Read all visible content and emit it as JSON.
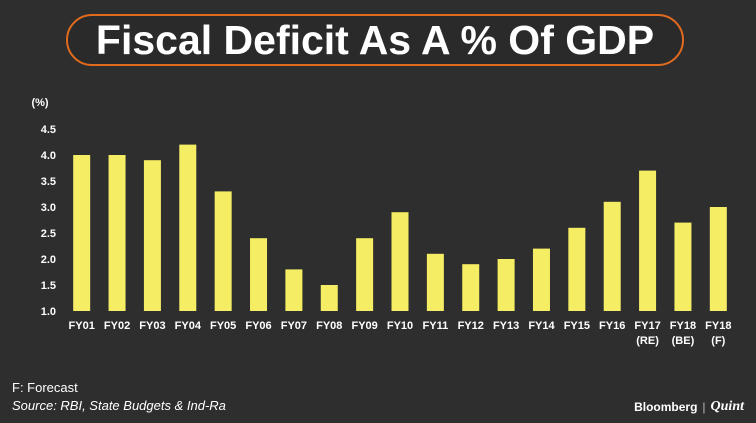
{
  "title": "Fiscal Deficit As A % Of GDP",
  "footnote": "F: Forecast",
  "source": "Source: RBI, State Budgets & Ind-Ra",
  "logo": {
    "brand": "Bloomberg",
    "separator": "|",
    "sub": "Quint"
  },
  "colors": {
    "background": "#2e2e2e",
    "bar": "#f5ee64",
    "title_border": "#e06b1f",
    "text": "#ffffff"
  },
  "chart_data": {
    "type": "bar",
    "title": "Fiscal Deficit As A % Of GDP",
    "ylabel": "(%)",
    "xlabel": "",
    "ylim": [
      1.0,
      4.5
    ],
    "yticks": [
      "1.0",
      "1.5",
      "2.0",
      "2.5",
      "3.0",
      "3.5",
      "4.0",
      "4.5"
    ],
    "grid": false,
    "categories": [
      [
        "FY01"
      ],
      [
        "FY02"
      ],
      [
        "FY03"
      ],
      [
        "FY04"
      ],
      [
        "FY05"
      ],
      [
        "FY06"
      ],
      [
        "FY07"
      ],
      [
        "FY08"
      ],
      [
        "FY09"
      ],
      [
        "FY10"
      ],
      [
        "FY11"
      ],
      [
        "FY12"
      ],
      [
        "FY13"
      ],
      [
        "FY14"
      ],
      [
        "FY15"
      ],
      [
        "FY16"
      ],
      [
        "FY17",
        "(RE)"
      ],
      [
        "FY18",
        "(BE)"
      ],
      [
        "FY18",
        "(F)"
      ]
    ],
    "values": [
      4.0,
      4.0,
      3.9,
      4.2,
      3.3,
      2.4,
      1.8,
      1.5,
      2.4,
      2.9,
      2.1,
      1.9,
      2.0,
      2.2,
      2.6,
      3.1,
      3.7,
      2.7,
      3.0
    ]
  }
}
